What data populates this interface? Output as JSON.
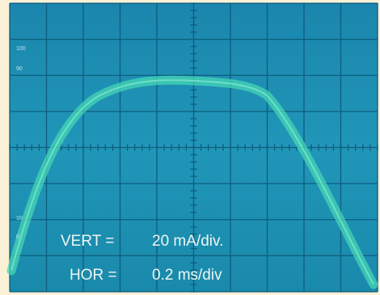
{
  "screen": {
    "graticule_labels": [
      "100",
      "90",
      "10",
      "0"
    ],
    "readout": {
      "vert_label": "VERT =",
      "vert_value": "20 mA/div.",
      "hor_label": "HOR =",
      "hor_value": "0.2 ms/div"
    }
  }
}
